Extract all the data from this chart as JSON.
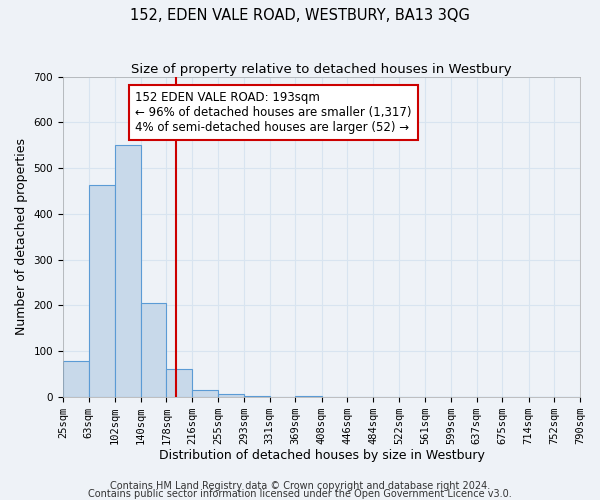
{
  "title": "152, EDEN VALE ROAD, WESTBURY, BA13 3QG",
  "subtitle": "Size of property relative to detached houses in Westbury",
  "xlabel": "Distribution of detached houses by size in Westbury",
  "ylabel": "Number of detached properties",
  "bin_edges": [
    25,
    63,
    102,
    140,
    178,
    216,
    255,
    293,
    331,
    369,
    408,
    446,
    484,
    522,
    561,
    599,
    637,
    675,
    714,
    752,
    790
  ],
  "bin_counts": [
    78,
    462,
    550,
    204,
    60,
    15,
    5,
    1,
    0,
    1,
    0,
    0,
    0,
    0,
    0,
    0,
    0,
    0,
    0,
    0
  ],
  "bar_color": "#c8d9ea",
  "bar_edge_color": "#5b9bd5",
  "vline_x": 193,
  "vline_color": "#cc0000",
  "annotation_title": "152 EDEN VALE ROAD: 193sqm",
  "annotation_line1": "← 96% of detached houses are smaller (1,317)",
  "annotation_line2": "4% of semi-detached houses are larger (52) →",
  "annotation_box_color": "#cc0000",
  "ylim": [
    0,
    700
  ],
  "yticks": [
    0,
    100,
    200,
    300,
    400,
    500,
    600,
    700
  ],
  "tick_labels": [
    "25sqm",
    "63sqm",
    "102sqm",
    "140sqm",
    "178sqm",
    "216sqm",
    "255sqm",
    "293sqm",
    "331sqm",
    "369sqm",
    "408sqm",
    "446sqm",
    "484sqm",
    "522sqm",
    "561sqm",
    "599sqm",
    "637sqm",
    "675sqm",
    "714sqm",
    "752sqm",
    "790sqm"
  ],
  "footer1": "Contains HM Land Registry data © Crown copyright and database right 2024.",
  "footer2": "Contains public sector information licensed under the Open Government Licence v3.0.",
  "bg_color": "#eef2f7",
  "grid_color": "#d8e4f0",
  "title_fontsize": 10.5,
  "subtitle_fontsize": 9.5,
  "axis_label_fontsize": 9,
  "tick_fontsize": 7.5,
  "footer_fontsize": 7,
  "annot_fontsize": 8.5
}
